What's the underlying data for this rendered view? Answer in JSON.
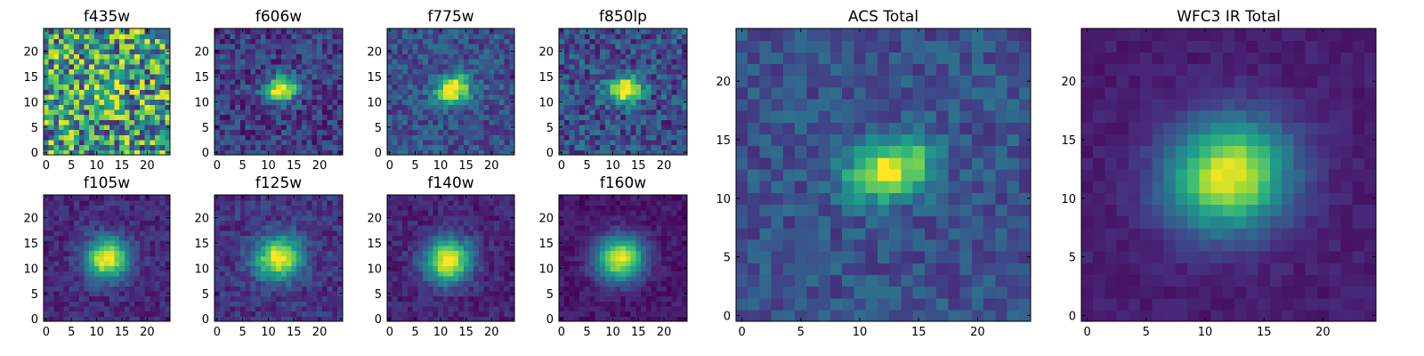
{
  "figure": {
    "colormap": "viridis",
    "colormap_stops": [
      "#440154",
      "#482878",
      "#3e4989",
      "#31688e",
      "#26828e",
      "#1f9e89",
      "#35b779",
      "#6ece58",
      "#b5de2b",
      "#fde725"
    ]
  },
  "chart_data": [
    {
      "type": "heatmap",
      "title": "f435w",
      "grid": [
        25,
        25
      ],
      "xlim": [
        0,
        24
      ],
      "ylim": [
        0,
        24
      ],
      "xticks": [
        "0",
        "5",
        "10",
        "15",
        "20"
      ],
      "yticks": [
        "0",
        "5",
        "10",
        "15",
        "20"
      ],
      "source_center": [
        12,
        12
      ],
      "source_sigma": [
        2.2,
        1.6
      ],
      "peak": 0.4,
      "background": 0.55,
      "noise": 0.45,
      "grid_on": false
    },
    {
      "type": "heatmap",
      "title": "f606w",
      "grid": [
        25,
        25
      ],
      "xlim": [
        0,
        24
      ],
      "ylim": [
        0,
        24
      ],
      "xticks": [
        "0",
        "5",
        "10",
        "15",
        "20"
      ],
      "yticks": [
        "0",
        "5",
        "10",
        "15",
        "20"
      ],
      "source_center": [
        12.5,
        12.5
      ],
      "source_sigma": [
        2.3,
        1.7
      ],
      "peak": 0.9,
      "background": 0.18,
      "noise": 0.16,
      "grid_on": false
    },
    {
      "type": "heatmap",
      "title": "f775w",
      "grid": [
        25,
        25
      ],
      "xlim": [
        0,
        24
      ],
      "ylim": [
        0,
        24
      ],
      "xticks": [
        "0",
        "5",
        "10",
        "15",
        "20"
      ],
      "yticks": [
        "0",
        "5",
        "10",
        "15",
        "20"
      ],
      "source_center": [
        12.5,
        12.5
      ],
      "source_sigma": [
        2.4,
        1.8
      ],
      "peak": 0.85,
      "background": 0.25,
      "noise": 0.15,
      "grid_on": false
    },
    {
      "type": "heatmap",
      "title": "f850lp",
      "grid": [
        25,
        25
      ],
      "xlim": [
        0,
        24
      ],
      "ylim": [
        0,
        24
      ],
      "xticks": [
        "0",
        "5",
        "10",
        "15",
        "20"
      ],
      "yticks": [
        "0",
        "5",
        "10",
        "15",
        "20"
      ],
      "source_center": [
        12.5,
        12.5
      ],
      "source_sigma": [
        2.3,
        1.8
      ],
      "peak": 0.8,
      "background": 0.25,
      "noise": 0.2,
      "grid_on": false
    },
    {
      "type": "heatmap",
      "title": "f105w",
      "grid": [
        25,
        25
      ],
      "xlim": [
        0,
        24
      ],
      "ylim": [
        0,
        24
      ],
      "xticks": [
        "0",
        "5",
        "10",
        "15",
        "20"
      ],
      "yticks": [
        "0",
        "5",
        "10",
        "15",
        "20"
      ],
      "source_center": [
        12,
        12
      ],
      "source_sigma": [
        3.0,
        2.8
      ],
      "peak": 0.9,
      "background": 0.12,
      "noise": 0.09,
      "grid_on": false
    },
    {
      "type": "heatmap",
      "title": "f125w",
      "grid": [
        25,
        25
      ],
      "xlim": [
        0,
        24
      ],
      "ylim": [
        0,
        24
      ],
      "xticks": [
        "0",
        "5",
        "10",
        "15",
        "20"
      ],
      "yticks": [
        "0",
        "5",
        "10",
        "15",
        "20"
      ],
      "source_center": [
        12,
        12
      ],
      "source_sigma": [
        3.2,
        2.9
      ],
      "peak": 0.85,
      "background": 0.15,
      "noise": 0.1,
      "grid_on": false
    },
    {
      "type": "heatmap",
      "title": "f140w",
      "grid": [
        25,
        25
      ],
      "xlim": [
        0,
        24
      ],
      "ylim": [
        0,
        24
      ],
      "xticks": [
        "0",
        "5",
        "10",
        "15",
        "20"
      ],
      "yticks": [
        "0",
        "5",
        "10",
        "15",
        "20"
      ],
      "source_center": [
        11.5,
        11.5
      ],
      "source_sigma": [
        3.2,
        3.0
      ],
      "peak": 0.9,
      "background": 0.1,
      "noise": 0.08,
      "grid_on": false
    },
    {
      "type": "heatmap",
      "title": "f160w",
      "grid": [
        25,
        25
      ],
      "xlim": [
        0,
        24
      ],
      "ylim": [
        0,
        24
      ],
      "xticks": [
        "0",
        "5",
        "10",
        "15",
        "20"
      ],
      "yticks": [
        "0",
        "5",
        "10",
        "15",
        "20"
      ],
      "source_center": [
        11.5,
        12
      ],
      "source_sigma": [
        3.3,
        3.0
      ],
      "peak": 0.92,
      "background": 0.06,
      "noise": 0.06,
      "grid_on": false
    },
    {
      "type": "heatmap",
      "title": "ACS Total",
      "grid": [
        25,
        25
      ],
      "xlim": [
        0,
        24
      ],
      "ylim": [
        0,
        24
      ],
      "xticks": [
        "0",
        "5",
        "10",
        "15",
        "20"
      ],
      "yticks": [
        "0",
        "5",
        "10",
        "15",
        "20"
      ],
      "source_center": [
        12.5,
        12.5
      ],
      "source_sigma": [
        2.5,
        1.7
      ],
      "peak": 0.78,
      "background": 0.25,
      "noise": 0.12,
      "grid_on": false
    },
    {
      "type": "heatmap",
      "title": "WFC3 IR Total",
      "grid": [
        25,
        25
      ],
      "xlim": [
        0,
        24
      ],
      "ylim": [
        0,
        24
      ],
      "xticks": [
        "0",
        "5",
        "10",
        "15",
        "20"
      ],
      "yticks": [
        "0",
        "5",
        "10",
        "15",
        "20"
      ],
      "source_center": [
        12,
        12
      ],
      "source_sigma": [
        3.6,
        3.2
      ],
      "peak": 0.9,
      "background": 0.08,
      "noise": 0.04,
      "grid_on": false
    }
  ]
}
